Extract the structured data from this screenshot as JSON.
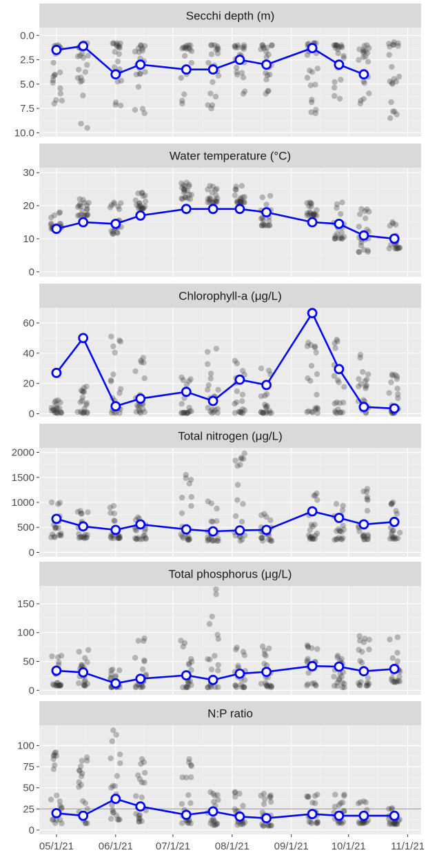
{
  "colors": {
    "panel_bg": "#ebebeb",
    "strip_bg": "#d9d9d9",
    "grid_major": "#ffffff",
    "points": "#333333",
    "series_line": "#0000ff",
    "marker_fill": "#ffffff",
    "reference_line": "#b3b3b3"
  },
  "x_axis": {
    "tick_labels": [
      "05/1/21",
      "06/1/21",
      "07/1/21",
      "08/1/21",
      "09/1/21",
      "10/1/21",
      "11/1/21"
    ],
    "tick_dates": [
      "2021-05-01",
      "2021-06-01",
      "2021-07-01",
      "2021-08-01",
      "2021-09-01",
      "2021-10-01",
      "2021-11-01"
    ],
    "range": [
      "2021-04-22",
      "2021-11-08"
    ]
  },
  "chart_data": [
    {
      "type": "scatter",
      "title": "Secchi depth (m)",
      "y_reversed": true,
      "ylim": [
        -0.8,
        10.4
      ],
      "yticks": [
        "0.0",
        "2.5",
        "5.0",
        "7.5",
        "10.0"
      ],
      "ytick_values": [
        0,
        2.5,
        5,
        7.5,
        10
      ],
      "grid": true,
      "sample_dates": [
        "2021-05-01",
        "2021-05-15",
        "2021-06-01",
        "2021-06-14",
        "2021-07-08",
        "2021-07-22",
        "2021-08-05",
        "2021-08-19",
        "2021-09-12",
        "2021-09-26",
        "2021-10-09",
        "2021-10-25"
      ],
      "series": [
        {
          "x": [
            "2021-05-01",
            "2021-05-15",
            "2021-06-01",
            "2021-06-14",
            "2021-07-08",
            "2021-07-22",
            "2021-08-05",
            "2021-08-19",
            "2021-09-12",
            "2021-09-26",
            "2021-10-09"
          ],
          "values": [
            1.5,
            1.1,
            4.0,
            3.0,
            3.5,
            3.5,
            2.5,
            3.0,
            1.3,
            3.0,
            4.0
          ]
        }
      ],
      "scatter_ranges": [
        [
          1,
          7
        ],
        [
          0.8,
          9.5
        ],
        [
          0.8,
          7.2
        ],
        [
          1,
          8
        ],
        [
          1,
          7
        ],
        [
          1,
          7.5
        ],
        [
          1,
          6
        ],
        [
          1,
          6
        ],
        [
          0.8,
          8
        ],
        [
          1,
          6.5
        ],
        [
          1,
          7
        ],
        [
          0.7,
          8.5
        ]
      ],
      "points_per_sample": 20
    },
    {
      "type": "scatter",
      "title": "Water temperature (°C)",
      "y_reversed": false,
      "ylim": [
        -1.5,
        31.5
      ],
      "yticks": [
        "0",
        "10",
        "20",
        "30"
      ],
      "ytick_values": [
        0,
        10,
        20,
        30
      ],
      "grid": true,
      "sample_dates": [
        "2021-05-01",
        "2021-05-15",
        "2021-06-01",
        "2021-06-14",
        "2021-07-08",
        "2021-07-22",
        "2021-08-05",
        "2021-08-19",
        "2021-09-12",
        "2021-09-26",
        "2021-10-09",
        "2021-10-25"
      ],
      "series": [
        {
          "x": [
            "2021-05-01",
            "2021-05-15",
            "2021-06-01",
            "2021-06-14",
            "2021-07-08",
            "2021-07-22",
            "2021-08-05",
            "2021-08-19",
            "2021-09-12",
            "2021-09-26",
            "2021-10-09",
            "2021-10-25"
          ],
          "values": [
            13,
            15,
            14.5,
            17,
            19,
            19,
            19,
            18,
            15,
            14.5,
            11,
            10
          ]
        }
      ],
      "scatter_ranges": [
        [
          13,
          18
        ],
        [
          17,
          22
        ],
        [
          11.5,
          21
        ],
        [
          19,
          24
        ],
        [
          22,
          27
        ],
        [
          21,
          26
        ],
        [
          21,
          26
        ],
        [
          14,
          23
        ],
        [
          17,
          21
        ],
        [
          10,
          21
        ],
        [
          6,
          19
        ],
        [
          7,
          15
        ]
      ],
      "points_per_sample": 20
    },
    {
      "type": "scatter",
      "title": "Chlorophyll-a (μg/L)",
      "y_reversed": false,
      "ylim": [
        -2,
        70
      ],
      "yticks": [
        "0",
        "20",
        "40",
        "60"
      ],
      "ytick_values": [
        0,
        20,
        40,
        60
      ],
      "grid": true,
      "sample_dates": [
        "2021-05-01",
        "2021-05-15",
        "2021-06-01",
        "2021-06-14",
        "2021-07-08",
        "2021-07-22",
        "2021-08-05",
        "2021-08-19",
        "2021-09-12",
        "2021-09-26",
        "2021-10-09",
        "2021-10-25"
      ],
      "series": [
        {
          "x": [
            "2021-05-01",
            "2021-05-15",
            "2021-06-01",
            "2021-06-14",
            "2021-07-08",
            "2021-07-22",
            "2021-08-05",
            "2021-08-19",
            "2021-09-12",
            "2021-09-26",
            "2021-10-09",
            "2021-10-25"
          ],
          "values": [
            27,
            50,
            5,
            10,
            14.5,
            8.5,
            22.5,
            19,
            66.5,
            29.5,
            4.5,
            3.5
          ]
        }
      ],
      "scatter_ranges": [
        [
          0.5,
          9
        ],
        [
          0.5,
          18
        ],
        [
          0.5,
          51
        ],
        [
          0.5,
          37
        ],
        [
          0.5,
          24
        ],
        [
          0.5,
          43
        ],
        [
          0.5,
          35
        ],
        [
          0.5,
          30
        ],
        [
          0.5,
          47
        ],
        [
          0.5,
          49
        ],
        [
          0.5,
          39
        ],
        [
          0.5,
          26
        ]
      ],
      "points_per_sample": 20
    },
    {
      "type": "scatter",
      "title": "Total nitrogen (μg/L)",
      "y_reversed": false,
      "ylim": [
        -90,
        2090
      ],
      "yticks": [
        "0",
        "500",
        "1000",
        "1500",
        "2000"
      ],
      "ytick_values": [
        0,
        500,
        1000,
        1500,
        2000
      ],
      "grid": true,
      "sample_dates": [
        "2021-05-01",
        "2021-05-15",
        "2021-06-01",
        "2021-06-14",
        "2021-07-08",
        "2021-07-22",
        "2021-08-05",
        "2021-08-19",
        "2021-09-12",
        "2021-09-26",
        "2021-10-09",
        "2021-10-25"
      ],
      "series": [
        {
          "x": [
            "2021-05-01",
            "2021-05-15",
            "2021-06-01",
            "2021-06-14",
            "2021-07-08",
            "2021-07-22",
            "2021-08-05",
            "2021-08-19",
            "2021-09-12",
            "2021-09-26",
            "2021-10-09",
            "2021-10-25"
          ],
          "values": [
            670,
            520,
            450,
            560,
            460,
            420,
            440,
            450,
            820,
            690,
            560,
            610
          ]
        }
      ],
      "scatter_ranges": [
        [
          300,
          1000
        ],
        [
          280,
          830
        ],
        [
          280,
          930
        ],
        [
          260,
          700
        ],
        [
          250,
          1550
        ],
        [
          230,
          1020
        ],
        [
          230,
          1980
        ],
        [
          230,
          770
        ],
        [
          270,
          1180
        ],
        [
          250,
          970
        ],
        [
          260,
          1270
        ],
        [
          270,
          1000
        ]
      ],
      "points_per_sample": 20
    },
    {
      "type": "scatter",
      "title": "Total phosphorus (μg/L)",
      "y_reversed": false,
      "ylim": [
        -8,
        181
      ],
      "yticks": [
        "0",
        "50",
        "100",
        "150"
      ],
      "ytick_values": [
        0,
        50,
        100,
        150
      ],
      "grid": true,
      "sample_dates": [
        "2021-05-01",
        "2021-05-15",
        "2021-06-01",
        "2021-06-14",
        "2021-07-08",
        "2021-07-22",
        "2021-08-05",
        "2021-08-19",
        "2021-09-12",
        "2021-09-26",
        "2021-10-09",
        "2021-10-25"
      ],
      "series": [
        {
          "x": [
            "2021-05-01",
            "2021-05-15",
            "2021-06-01",
            "2021-06-14",
            "2021-07-08",
            "2021-07-22",
            "2021-08-05",
            "2021-08-19",
            "2021-09-12",
            "2021-09-26",
            "2021-10-09",
            "2021-10-25"
          ],
          "values": [
            34,
            31,
            12,
            20,
            26,
            18,
            29,
            32,
            42,
            41,
            33,
            37
          ]
        }
      ],
      "scatter_ranges": [
        [
          8,
          60
        ],
        [
          8,
          70
        ],
        [
          5,
          36
        ],
        [
          5,
          90
        ],
        [
          5,
          86
        ],
        [
          5,
          175
        ],
        [
          5,
          74
        ],
        [
          5,
          76
        ],
        [
          8,
          78
        ],
        [
          5,
          60
        ],
        [
          8,
          94
        ],
        [
          14,
          92
        ]
      ],
      "points_per_sample": 20
    },
    {
      "type": "scatter",
      "title": "N:P ratio",
      "y_reversed": false,
      "ylim": [
        -5,
        124
      ],
      "yticks": [
        "0",
        "25",
        "50",
        "75",
        "100"
      ],
      "ytick_values": [
        0,
        25,
        50,
        75,
        100
      ],
      "grid": true,
      "reference_line": 25,
      "sample_dates": [
        "2021-05-01",
        "2021-05-15",
        "2021-06-01",
        "2021-06-14",
        "2021-07-08",
        "2021-07-22",
        "2021-08-05",
        "2021-08-19",
        "2021-09-12",
        "2021-09-26",
        "2021-10-09",
        "2021-10-25"
      ],
      "series": [
        {
          "x": [
            "2021-05-01",
            "2021-05-15",
            "2021-06-01",
            "2021-06-14",
            "2021-07-08",
            "2021-07-22",
            "2021-08-05",
            "2021-08-19",
            "2021-09-12",
            "2021-09-26",
            "2021-10-09",
            "2021-10-25"
          ],
          "values": [
            20,
            17,
            37,
            28,
            18,
            22,
            16,
            14,
            19,
            17,
            17,
            17
          ]
        }
      ],
      "scatter_ranges": [
        [
          8,
          92
        ],
        [
          8,
          86
        ],
        [
          12,
          118
        ],
        [
          10,
          84
        ],
        [
          8,
          84
        ],
        [
          6,
          45
        ],
        [
          6,
          45
        ],
        [
          5,
          43
        ],
        [
          8,
          42
        ],
        [
          8,
          42
        ],
        [
          8,
          34
        ],
        [
          7,
          26
        ]
      ],
      "points_per_sample": 20
    }
  ]
}
